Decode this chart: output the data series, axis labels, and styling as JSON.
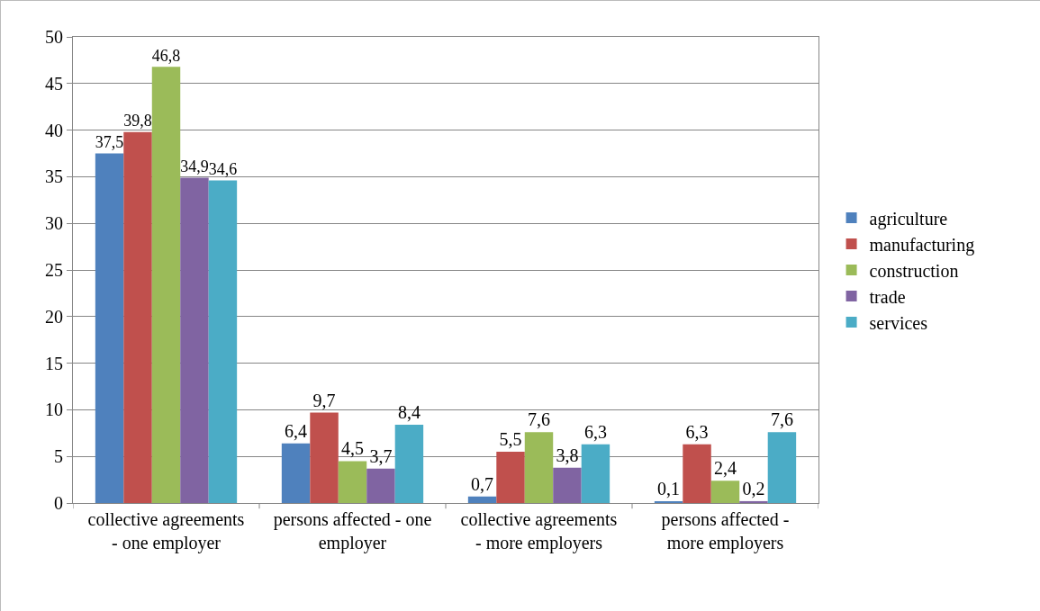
{
  "chart_data": {
    "type": "bar",
    "categories": [
      "collective agreements - one employer",
      "persons affected - one employer",
      "collective agreements - more employers",
      "persons affected - more employers"
    ],
    "series": [
      {
        "name": "agriculture",
        "color": "#4f81bd",
        "values": [
          37.5,
          6.4,
          0.7,
          0.1
        ],
        "value_labels": [
          "37,5",
          "6,4",
          "0,7",
          "0,1"
        ]
      },
      {
        "name": "manufacturing",
        "color": "#c0504d",
        "values": [
          39.8,
          9.7,
          5.5,
          6.3
        ],
        "value_labels": [
          "39,8",
          "9,7",
          "5,5",
          "6,3"
        ]
      },
      {
        "name": "construction",
        "color": "#9bbb59",
        "values": [
          46.8,
          4.5,
          7.6,
          2.4
        ],
        "value_labels": [
          "46,8",
          "4,5",
          "7,6",
          "2,4"
        ]
      },
      {
        "name": "trade",
        "color": "#8064a2",
        "values": [
          34.9,
          3.7,
          3.8,
          0.2
        ],
        "value_labels": [
          "34,9",
          "3,7",
          "3,8",
          "0,2"
        ]
      },
      {
        "name": "services",
        "color": "#4bacc6",
        "values": [
          34.6,
          8.4,
          6.3,
          7.6
        ],
        "value_labels": [
          "34,6",
          "8,4",
          "6,3",
          "7,6"
        ]
      }
    ],
    "ylim": [
      0,
      50
    ],
    "yticks": [
      0,
      5,
      10,
      15,
      20,
      25,
      30,
      35,
      40,
      45,
      50
    ],
    "grid": "y",
    "legend": "right"
  }
}
